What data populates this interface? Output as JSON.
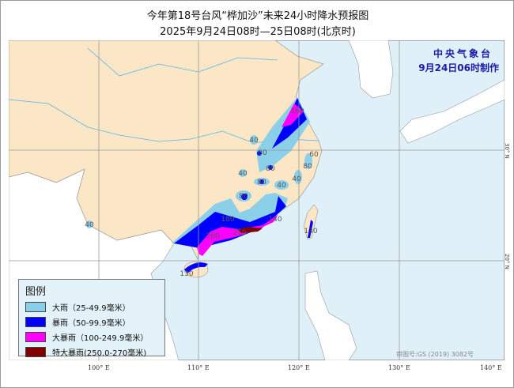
{
  "title": "今年第18号台风“桦加沙”未来24小时降水预报图",
  "subtitle": "2025年9月24日08时—25日08时(北京时)",
  "agency": "中央气象台",
  "issued": "9月24日06时制作",
  "review_number": "审图号:GS (2019) 3082号",
  "lon_ticks": [
    "100° E",
    "110° E",
    "120° E",
    "130° E",
    "140° E"
  ],
  "lat_ticks": [
    "30° N",
    "20° N"
  ],
  "legend": {
    "title": "图例",
    "items": [
      {
        "label": "大雨（25-49.9毫米）",
        "color": "#87ceeb"
      },
      {
        "label": "暴雨（50-99.9毫米）",
        "color": "#0000ff"
      },
      {
        "label": "大暴雨（100-249.9毫米）",
        "color": "#ff00ff"
      },
      {
        "label": "特大暴雨(250.0-270毫米)",
        "color": "#800000"
      }
    ]
  },
  "rain_labels": [
    "160",
    "40",
    "80",
    "80",
    "40",
    "80",
    "40",
    "60",
    "80",
    "40",
    "80",
    "180",
    "140",
    "260",
    "210",
    "130",
    "130",
    "40"
  ],
  "colors": {
    "land_china": "#fbe6c6",
    "land_other": "#ffffff",
    "sea": "#dff0f9",
    "border": "#b0a89a",
    "river": "#5ab4e8"
  }
}
